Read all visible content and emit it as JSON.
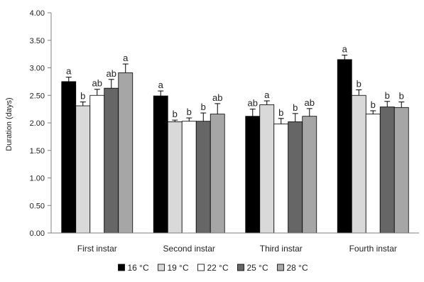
{
  "chart_data": {
    "type": "bar",
    "ylabel": "Duration (days)",
    "ylim": [
      0,
      4
    ],
    "yticks": [
      "0.00",
      "0.50",
      "1.00",
      "1.50",
      "2.00",
      "2.50",
      "3.00",
      "3.50",
      "4.00"
    ],
    "yticks_values": [
      0,
      0.5,
      1,
      1.5,
      2,
      2.5,
      3,
      3.5,
      4
    ],
    "grid": false,
    "legend_position": "bottom",
    "categories": [
      "First instar",
      "Second instar",
      "Third instar",
      "Fourth instar"
    ],
    "series": [
      {
        "name": "16 °C",
        "color": "#000000",
        "values": [
          2.75,
          2.49,
          2.12,
          3.15
        ],
        "errors": [
          0.08,
          0.09,
          0.13,
          0.08
        ],
        "labels": [
          "a",
          "a",
          "ab",
          "a"
        ]
      },
      {
        "name": "19 °C",
        "color": "#d9d9d9",
        "values": [
          2.31,
          2.02,
          2.33,
          2.5
        ],
        "errors": [
          0.07,
          0.03,
          0.07,
          0.1
        ],
        "labels": [
          "b",
          "b",
          "a",
          "b"
        ]
      },
      {
        "name": "22 °C",
        "color": "#ffffff",
        "values": [
          2.5,
          2.03,
          1.98,
          2.16
        ],
        "errors": [
          0.11,
          0.06,
          0.1,
          0.06
        ],
        "labels": [
          "ab",
          "b",
          "b",
          "b"
        ]
      },
      {
        "name": "25 °C",
        "color": "#666666",
        "values": [
          2.63,
          2.03,
          2.02,
          2.29
        ],
        "errors": [
          0.16,
          0.15,
          0.15,
          0.1
        ],
        "labels": [
          "ab",
          "b",
          "b",
          "b"
        ]
      },
      {
        "name": "28 °C",
        "color": "#a6a6a6",
        "values": [
          2.91,
          2.16,
          2.12,
          2.28
        ],
        "errors": [
          0.16,
          0.19,
          0.14,
          0.1
        ],
        "labels": [
          "a",
          "ab",
          "ab",
          "b"
        ]
      }
    ]
  }
}
